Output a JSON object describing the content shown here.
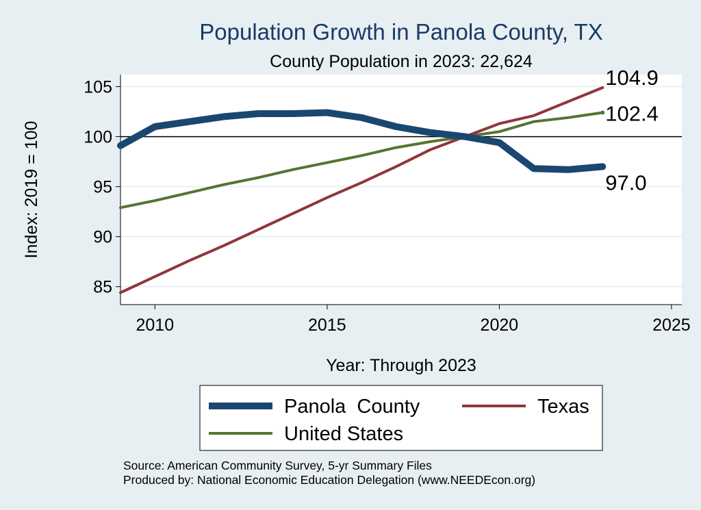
{
  "chart_data": {
    "type": "line",
    "title": "Population Growth in Panola County, TX",
    "subtitle": "County Population in 2023: 22,624",
    "xlabel": "Year: Through 2023",
    "ylabel": "Index: 2019 = 100",
    "xlim": [
      2009,
      2025.3
    ],
    "ylim": [
      83.2,
      106.2
    ],
    "xticks": [
      2010,
      2015,
      2020,
      2025
    ],
    "yticks": [
      85,
      90,
      95,
      100,
      105
    ],
    "reference_line": 100,
    "x": [
      2009,
      2010,
      2011,
      2012,
      2013,
      2014,
      2015,
      2016,
      2017,
      2018,
      2019,
      2020,
      2021,
      2022,
      2023
    ],
    "series": [
      {
        "name": "Panola  County",
        "color": "#1a476f",
        "values": [
          99.1,
          101.0,
          101.5,
          102.0,
          102.3,
          102.3,
          102.4,
          101.9,
          101.0,
          100.4,
          100.0,
          99.4,
          96.8,
          96.7,
          97.0
        ],
        "end_label": "97.0"
      },
      {
        "name": "Texas",
        "color": "#90353b",
        "values": [
          84.4,
          86.0,
          87.6,
          89.1,
          90.7,
          92.3,
          93.9,
          95.4,
          97.0,
          98.7,
          100.0,
          101.3,
          102.1,
          103.5,
          104.9
        ],
        "end_label": "104.9"
      },
      {
        "name": "United States",
        "color": "#55752f",
        "values": [
          92.9,
          93.6,
          94.4,
          95.2,
          95.9,
          96.7,
          97.4,
          98.1,
          98.9,
          99.5,
          100.0,
          100.5,
          101.5,
          101.9,
          102.4
        ],
        "end_label": "102.4"
      }
    ],
    "legend": {
      "position": "bottom",
      "items": [
        "Panola  County",
        "Texas",
        "United States"
      ]
    },
    "source_line1": "Source: American Community Survey, 5-yr Summary Files",
    "source_line2": "Produced by: National Economic Education Delegation (www.NEEDEcon.org)"
  }
}
